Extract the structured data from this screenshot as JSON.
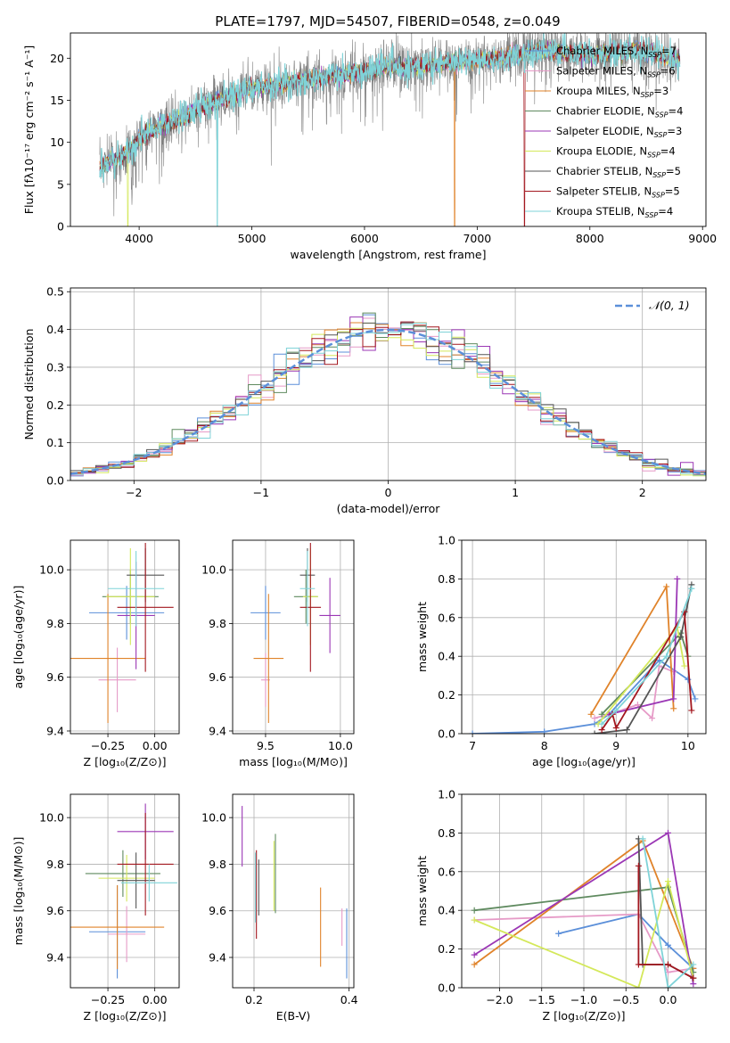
{
  "colors": {
    "chabrier_miles": "#5b8fd9",
    "salpeter_miles": "#e69ac7",
    "kroupa_miles": "#e0832a",
    "chabrier_elodie": "#5f8a5f",
    "salpeter_elodie": "#9b37b5",
    "kroupa_elodie": "#d4e85a",
    "chabrier_stelib": "#555555",
    "salpeter_stelib": "#a3171f",
    "kroupa_stelib": "#7fd3d8"
  },
  "chart_data": [
    {
      "id": "spectrum",
      "type": "line",
      "title": "PLATE=1797, MJD=54507, FIBERID=0548, z=0.049",
      "xlabel": "wavelength [Angstrom, rest frame]",
      "ylabel": "Flux [fλ10⁻¹⁷ erg cm⁻² s⁻¹ A⁻¹]",
      "xlim": [
        3390,
        9030
      ],
      "ylim": [
        0,
        23
      ],
      "xticks": [
        4000,
        5000,
        6000,
        7000,
        8000,
        9000
      ],
      "yticks": [
        0,
        5,
        10,
        15,
        20
      ],
      "spectrum_anchor_x": [
        3650,
        3700,
        3800,
        3900,
        4000,
        4200,
        4400,
        4600,
        4800,
        5000,
        5200,
        5500,
        5800,
        6000,
        6200,
        6500,
        6800,
        7000,
        7200,
        7400,
        7600,
        7800,
        8000,
        8200,
        8400,
        8600,
        8700,
        8800
      ],
      "spectrum_anchor_y": [
        7.0,
        7.5,
        8.0,
        9.0,
        10.5,
        12.0,
        13.0,
        14.5,
        15.5,
        16.5,
        16.8,
        17.5,
        18.0,
        18.5,
        19.0,
        19.0,
        19.5,
        19.8,
        20.0,
        20.5,
        21.0,
        20.5,
        20.5,
        20.8,
        21.0,
        20.5,
        20.0,
        20.0
      ],
      "legend": [
        "Chabrier MILES, N_SSP=7",
        "Salpeter MILES, N_SSP=6",
        "Kroupa MILES, N_SSP=3",
        "Chabrier ELODIE, N_SSP=4",
        "Salpeter ELODIE, N_SSP=3",
        "Kroupa ELODIE, N_SSP=4",
        "Chabrier STELIB, N_SSP=5",
        "Salpeter STELIB, N_SSP=5",
        "Kroupa STELIB, N_SSP=4"
      ],
      "legend_location": "top-right"
    },
    {
      "id": "residuals",
      "type": "line",
      "xlabel": "(data-model)/error",
      "ylabel": "Normed distribution",
      "xlim": [
        -2.5,
        2.5
      ],
      "ylim": [
        0,
        0.51
      ],
      "xticks": [
        -2,
        -1,
        0,
        1,
        2
      ],
      "yticks": [
        0.0,
        0.1,
        0.2,
        0.3,
        0.4,
        0.5
      ],
      "bin_width": 0.1,
      "bin_start": -2.5,
      "grid": true,
      "legend": [
        "𝒩(0, 1)"
      ],
      "legend_location": "top-right"
    },
    {
      "id": "z_age",
      "type": "scatter",
      "xlabel": "Z [log₁₀(Z/Z⊙)]",
      "ylabel": "age  [log₁₀(age/yr)]",
      "xlim": [
        -0.45,
        0.13
      ],
      "ylim": [
        9.39,
        10.11
      ],
      "xticks": [
        -0.25,
        0.0
      ],
      "xticklabels": [
        "−0.25",
        "0.00"
      ],
      "yticks": [
        9.4,
        9.6,
        9.8,
        10.0
      ],
      "grid": true,
      "errorbars": [
        {
          "c": "chabrier_miles",
          "x": -0.15,
          "y": 9.84,
          "xe": 0.2,
          "ye": 0.1
        },
        {
          "c": "salpeter_miles",
          "x": -0.2,
          "y": 9.59,
          "xe": 0.1,
          "ye": 0.12
        },
        {
          "c": "kroupa_miles",
          "x": -0.25,
          "y": 9.67,
          "xe": 0.2,
          "ye": 0.24
        },
        {
          "c": "chabrier_elodie",
          "x": -0.13,
          "y": 9.9,
          "xe": 0.15,
          "ye": 0.1
        },
        {
          "c": "salpeter_elodie",
          "x": -0.1,
          "y": 9.83,
          "xe": 0.1,
          "ye": 0.2
        },
        {
          "c": "kroupa_elodie",
          "x": -0.13,
          "y": 9.9,
          "xe": 0.13,
          "ye": 0.18
        },
        {
          "c": "chabrier_stelib",
          "x": -0.05,
          "y": 9.98,
          "xe": 0.1,
          "ye": 0.1
        },
        {
          "c": "salpeter_stelib",
          "x": -0.05,
          "y": 9.86,
          "xe": 0.15,
          "ye": 0.24
        },
        {
          "c": "kroupa_stelib",
          "x": -0.1,
          "y": 9.93,
          "xe": 0.15,
          "ye": 0.14
        }
      ]
    },
    {
      "id": "mass_age",
      "type": "scatter",
      "xlabel": "mass [log₁₀(M/M⊙)]",
      "ylabel": "",
      "xlim": [
        9.28,
        10.09
      ],
      "ylim": [
        9.39,
        10.11
      ],
      "xticks": [
        9.5,
        10.0
      ],
      "xticklabels": [
        "9.5",
        "10.0"
      ],
      "yticks": [
        9.4,
        9.6,
        9.8,
        10.0
      ],
      "grid": true,
      "errorbars": [
        {
          "c": "chabrier_miles",
          "x": 9.5,
          "y": 9.84,
          "xe": 0.1,
          "ye": 0.1
        },
        {
          "c": "salpeter_miles",
          "x": 9.5,
          "y": 9.59,
          "xe": 0.03,
          "ye": 0.1
        },
        {
          "c": "kroupa_miles",
          "x": 9.52,
          "y": 9.67,
          "xe": 0.1,
          "ye": 0.24
        },
        {
          "c": "chabrier_elodie",
          "x": 9.77,
          "y": 9.9,
          "xe": 0.08,
          "ye": 0.1
        },
        {
          "c": "salpeter_elodie",
          "x": 9.93,
          "y": 9.83,
          "xe": 0.07,
          "ye": 0.14
        },
        {
          "c": "kroupa_elodie",
          "x": 9.8,
          "y": 9.9,
          "xe": 0.05,
          "ye": 0.18
        },
        {
          "c": "chabrier_stelib",
          "x": 9.78,
          "y": 9.98,
          "xe": 0.05,
          "ye": 0.1
        },
        {
          "c": "salpeter_stelib",
          "x": 9.8,
          "y": 9.86,
          "xe": 0.07,
          "ye": 0.24
        },
        {
          "c": "kroupa_stelib",
          "x": 9.78,
          "y": 9.93,
          "xe": 0.05,
          "ye": 0.14
        }
      ]
    },
    {
      "id": "age_weight",
      "type": "line",
      "xlabel": "age  [log₁₀(age/yr)]",
      "ylabel": "mass weight",
      "xlim": [
        6.85,
        10.25
      ],
      "ylim": [
        0,
        1.0
      ],
      "xticks": [
        7,
        8,
        9,
        10
      ],
      "yticks": [
        0.0,
        0.2,
        0.4,
        0.6,
        0.8,
        1.0
      ],
      "grid": true,
      "series": [
        {
          "c": "chabrier_miles",
          "x": [
            7.0,
            8.0,
            8.7,
            8.9,
            9.6,
            10.0,
            10.1
          ],
          "y": [
            0.0,
            0.01,
            0.05,
            0.1,
            0.38,
            0.28,
            0.18
          ]
        },
        {
          "c": "salpeter_miles",
          "x": [
            8.7,
            8.9,
            9.3,
            9.5,
            9.6,
            9.8
          ],
          "y": [
            0.08,
            0.1,
            0.15,
            0.08,
            0.35,
            0.32
          ]
        },
        {
          "c": "kroupa_miles",
          "x": [
            8.65,
            9.7,
            9.8
          ],
          "y": [
            0.1,
            0.76,
            0.13
          ]
        },
        {
          "c": "chabrier_elodie",
          "x": [
            8.8,
            9.9,
            10.0
          ],
          "y": [
            0.1,
            0.52,
            0.4
          ]
        },
        {
          "c": "salpeter_elodie",
          "x": [
            8.9,
            9.8,
            9.85
          ],
          "y": [
            0.1,
            0.18,
            0.8
          ]
        },
        {
          "c": "kroupa_elodie",
          "x": [
            8.75,
            9.85,
            9.95
          ],
          "y": [
            0.05,
            0.55,
            0.35
          ]
        },
        {
          "c": "chabrier_stelib",
          "x": [
            8.7,
            9.15,
            9.9,
            10.05
          ],
          "y": [
            0.0,
            0.02,
            0.5,
            0.77
          ]
        },
        {
          "c": "salpeter_stelib",
          "x": [
            8.8,
            8.95,
            9.0,
            9.95,
            10.05
          ],
          "y": [
            0.02,
            0.1,
            0.03,
            0.63,
            0.12
          ]
        },
        {
          "c": "kroupa_stelib",
          "x": [
            8.8,
            9.0,
            9.7,
            10.05
          ],
          "y": [
            0.05,
            0.12,
            0.4,
            0.75
          ]
        }
      ]
    },
    {
      "id": "z_mass",
      "type": "scatter",
      "xlabel": "Z [log₁₀(Z/Z⊙)]",
      "ylabel": "mass [log₁₀(M/M⊙)]",
      "xlim": [
        -0.45,
        0.13
      ],
      "ylim": [
        9.27,
        10.1
      ],
      "xticks": [
        -0.25,
        0.0
      ],
      "xticklabels": [
        "−0.25",
        "0.00"
      ],
      "yticks": [
        9.4,
        9.6,
        9.8,
        10.0
      ],
      "grid": true,
      "errorbars": [
        {
          "c": "chabrier_miles",
          "x": -0.2,
          "y": 9.51,
          "xe": 0.15,
          "ye": 0.2
        },
        {
          "c": "salpeter_miles",
          "x": -0.15,
          "y": 9.5,
          "xe": 0.1,
          "ye": 0.12
        },
        {
          "c": "kroupa_miles",
          "x": -0.2,
          "y": 9.53,
          "xe": 0.25,
          "ye": 0.18
        },
        {
          "c": "chabrier_elodie",
          "x": -0.17,
          "y": 9.76,
          "xe": 0.2,
          "ye": 0.1
        },
        {
          "c": "salpeter_elodie",
          "x": -0.05,
          "y": 9.94,
          "xe": 0.15,
          "ye": 0.12
        },
        {
          "c": "kroupa_elodie",
          "x": -0.15,
          "y": 9.74,
          "xe": 0.15,
          "ye": 0.1
        },
        {
          "c": "chabrier_stelib",
          "x": -0.1,
          "y": 9.73,
          "xe": 0.1,
          "ye": 0.12
        },
        {
          "c": "salpeter_stelib",
          "x": -0.05,
          "y": 9.8,
          "xe": 0.15,
          "ye": 0.22
        },
        {
          "c": "kroupa_stelib",
          "x": -0.03,
          "y": 9.72,
          "xe": 0.15,
          "ye": 0.08
        }
      ]
    },
    {
      "id": "ebv_mass",
      "type": "scatter",
      "xlabel": "E(B-V)",
      "ylabel": "",
      "xlim": [
        0.155,
        0.41
      ],
      "ylim": [
        9.27,
        10.1
      ],
      "xticks": [
        0.2,
        0.4
      ],
      "xticklabels": [
        "0.2",
        "0.4"
      ],
      "yticks": [
        9.4,
        9.6,
        9.8,
        10.0
      ],
      "grid": true,
      "errorbars": [
        {
          "c": "chabrier_miles",
          "x": 0.395,
          "y": 9.46,
          "xe": 0.0,
          "ye": 0.15
        },
        {
          "c": "salpeter_miles",
          "x": 0.385,
          "y": 9.53,
          "xe": 0.0,
          "ye": 0.08
        },
        {
          "c": "kroupa_miles",
          "x": 0.34,
          "y": 9.53,
          "xe": 0.0,
          "ye": 0.17
        },
        {
          "c": "chabrier_elodie",
          "x": 0.245,
          "y": 9.76,
          "xe": 0.0,
          "ye": 0.17
        },
        {
          "c": "salpeter_elodie",
          "x": 0.175,
          "y": 9.92,
          "xe": 0.0,
          "ye": 0.13
        },
        {
          "c": "kroupa_elodie",
          "x": 0.242,
          "y": 9.75,
          "xe": 0.0,
          "ye": 0.15
        },
        {
          "c": "chabrier_stelib",
          "x": 0.21,
          "y": 9.7,
          "xe": 0.0,
          "ye": 0.12
        },
        {
          "c": "salpeter_stelib",
          "x": 0.205,
          "y": 9.67,
          "xe": 0.0,
          "ye": 0.19
        },
        {
          "c": "kroupa_stelib",
          "x": 0.203,
          "y": 9.7,
          "xe": 0.0,
          "ye": 0.15
        }
      ]
    },
    {
      "id": "z_weight",
      "type": "line",
      "xlabel": "Z [log₁₀(Z/Z⊙)]",
      "ylabel": "mass weight",
      "xlim": [
        -2.45,
        0.45
      ],
      "ylim": [
        0,
        1.0
      ],
      "xticks": [
        -2.0,
        -1.5,
        -1.0,
        -0.5,
        0.0
      ],
      "xticklabels": [
        "−2.0",
        "−1.5",
        "−1.0",
        "−0.5",
        "0.0"
      ],
      "yticks": [
        0.0,
        0.2,
        0.4,
        0.6,
        0.8,
        1.0
      ],
      "grid": true,
      "series": [
        {
          "c": "chabrier_miles",
          "x": [
            -1.3,
            -0.35,
            0.0,
            0.3
          ],
          "y": [
            0.28,
            0.38,
            0.22,
            0.1
          ]
        },
        {
          "c": "salpeter_miles",
          "x": [
            -2.3,
            -0.35,
            0.0,
            0.3
          ],
          "y": [
            0.35,
            0.38,
            0.08,
            0.1
          ]
        },
        {
          "c": "kroupa_miles",
          "x": [
            -2.3,
            -0.3,
            0.3
          ],
          "y": [
            0.12,
            0.76,
            0.1
          ]
        },
        {
          "c": "chabrier_elodie",
          "x": [
            -2.3,
            0.0,
            0.3
          ],
          "y": [
            0.4,
            0.52,
            0.08
          ]
        },
        {
          "c": "salpeter_elodie",
          "x": [
            -2.3,
            0.0,
            0.3
          ],
          "y": [
            0.17,
            0.8,
            0.02
          ]
        },
        {
          "c": "kroupa_elodie",
          "x": [
            -2.3,
            -0.35,
            0.0,
            0.3
          ],
          "y": [
            0.35,
            0.0,
            0.55,
            0.05
          ]
        },
        {
          "c": "chabrier_stelib",
          "x": [
            -0.35,
            -0.3,
            0.0,
            0.3
          ],
          "y": [
            0.77,
            0.12,
            0.12,
            0.05
          ]
        },
        {
          "c": "salpeter_stelib",
          "x": [
            -0.35,
            -0.35,
            0.0,
            0.3
          ],
          "y": [
            0.63,
            0.12,
            0.12,
            0.05
          ]
        },
        {
          "c": "kroupa_stelib",
          "x": [
            -0.3,
            0.0,
            0.3
          ],
          "y": [
            0.77,
            0.0,
            0.12
          ]
        }
      ]
    }
  ]
}
